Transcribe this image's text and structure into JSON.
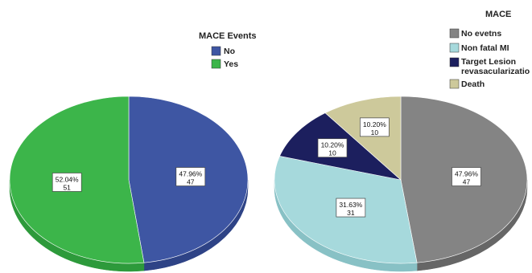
{
  "chart_data": [
    {
      "type": "pie",
      "title": "",
      "legend_title": "MACE Events",
      "legend_position": "top",
      "series": [
        {
          "name": "No",
          "percent_label": "47.96%",
          "count": 47,
          "color": "#3e56a3",
          "side_color": "#2e4386"
        },
        {
          "name": "Yes",
          "percent_label": "52.04%",
          "count": 51,
          "color": "#3cb54a",
          "side_color": "#2d9a3b"
        }
      ]
    },
    {
      "type": "pie",
      "title": "",
      "legend_title": "MACE",
      "legend_position": "top-right",
      "series": [
        {
          "name": "No evetns",
          "percent_label": "47.96%",
          "count": 47,
          "color": "#848484",
          "side_color": "#666666"
        },
        {
          "name": "Non fatal MI",
          "percent_label": "31.63%",
          "count": 31,
          "color": "#a6d9dc",
          "side_color": "#88c1c5"
        },
        {
          "name": "Target Lesion revasacularizatio",
          "legend_lines": [
            "Target Lesion",
            "revasacularizatio"
          ],
          "percent_label": "10.20%",
          "count": 10,
          "color": "#1c1f5e",
          "side_color": "#12144a"
        },
        {
          "name": "Death",
          "percent_label": "10.20%",
          "count": 10,
          "color": "#cdc99b",
          "side_color": "#b3ae7e"
        }
      ]
    }
  ]
}
